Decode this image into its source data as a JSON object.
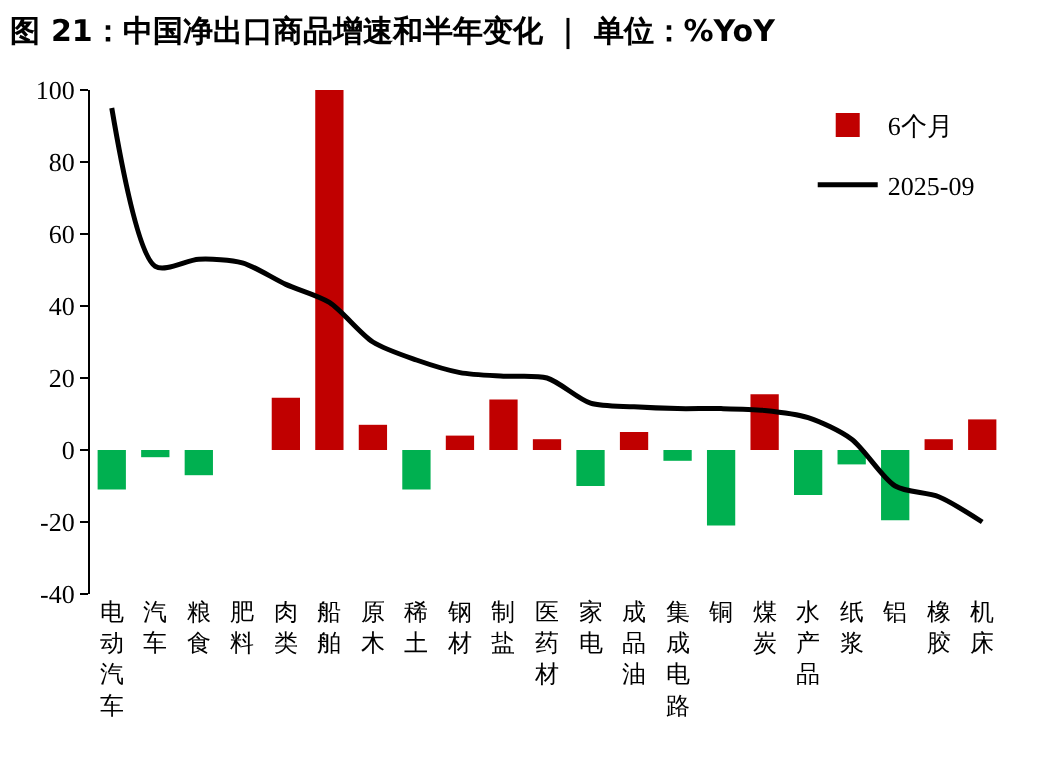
{
  "chart_data": {
    "type": "bar",
    "title": "图 21：中国净出口商品增速和半年变化 ｜ 单位：%YoY",
    "categories": [
      "电动汽车",
      "汽车",
      "粮食",
      "肥料",
      "肉类",
      "船舶",
      "原木",
      "稀土",
      "钢材",
      "制盐",
      "医药材",
      "家电",
      "成品油",
      "集成电路",
      "铜",
      "煤炭",
      "水产品",
      "纸浆",
      "铝",
      "橡胶",
      "机床"
    ],
    "series": [
      {
        "name": "6个月",
        "color": "#c00000",
        "colors": [
          "#00b050",
          "#00b050",
          "#00b050",
          "#c00000",
          "#c00000",
          "#c00000",
          "#c00000",
          "#00b050",
          "#c00000",
          "#c00000",
          "#c00000",
          "#00b050",
          "#c00000",
          "#00b050",
          "#00b050",
          "#c00000",
          "#00b050",
          "#00b050",
          "#00b050",
          "#c00000",
          "#c00000"
        ],
        "values": [
          -11,
          -2,
          -7,
          0,
          14.5,
          100,
          7,
          -11,
          4,
          14,
          3,
          -10,
          5,
          -3,
          -21,
          15.5,
          -12.5,
          -4,
          -19.5,
          3,
          8.5
        ]
      },
      {
        "name": "2025-09",
        "type": "line",
        "color": "#000000",
        "values": [
          95,
          51,
          53,
          52,
          46,
          41,
          30,
          25,
          21.5,
          20.5,
          20,
          13,
          12,
          11.5,
          11.5,
          11,
          9,
          3,
          -10,
          -13,
          -20
        ]
      }
    ],
    "ylim": [
      -40,
      100
    ],
    "yticks": [
      -40,
      -20,
      0,
      20,
      40,
      60,
      80,
      100
    ],
    "legend": "top right",
    "marker": "none",
    "line_style": "solid"
  }
}
